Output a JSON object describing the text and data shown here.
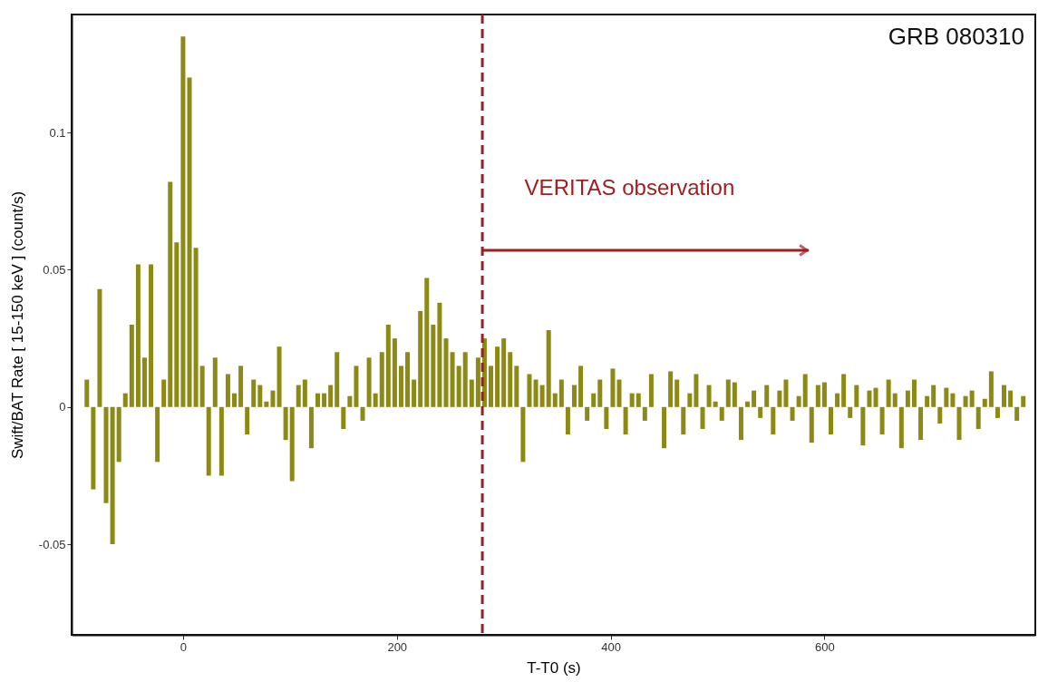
{
  "chart_data": {
    "type": "bar",
    "xlabel": "T-T0  (s)",
    "ylabel": "Swift/BAT Rate  [ 15-150 keV ]     (count/s)",
    "x": [
      -90,
      -84,
      -78,
      -72,
      -66,
      -60,
      -54,
      -48,
      -42,
      -36,
      -30,
      -24,
      -18,
      -12,
      -6,
      0,
      6,
      12,
      18,
      24,
      30,
      36,
      42,
      48,
      54,
      60,
      66,
      72,
      78,
      84,
      90,
      96,
      102,
      108,
      114,
      120,
      126,
      132,
      138,
      144,
      150,
      156,
      162,
      168,
      174,
      180,
      186,
      192,
      198,
      204,
      210,
      216,
      222,
      228,
      234,
      240,
      246,
      252,
      258,
      264,
      270,
      276,
      282,
      288,
      294,
      300,
      306,
      312,
      318,
      324,
      330,
      336,
      342,
      348,
      354,
      360,
      366,
      372,
      378,
      384,
      390,
      396,
      402,
      408,
      414,
      420,
      426,
      432,
      438,
      444,
      450,
      456,
      462,
      468,
      474,
      480,
      486,
      492,
      498,
      504,
      510,
      516,
      522,
      528,
      534,
      540,
      546,
      552,
      558,
      564,
      570,
      576,
      582,
      588,
      594,
      600,
      606,
      612,
      618,
      624,
      630,
      636,
      642,
      648,
      654,
      660,
      666,
      672,
      678,
      684,
      690,
      696,
      702,
      708,
      714,
      720,
      726,
      732,
      738,
      744,
      750,
      756,
      762,
      768,
      774,
      780,
      786
    ],
    "values": [
      0.01,
      -0.03,
      0.043,
      -0.035,
      -0.05,
      -0.02,
      0.005,
      0.03,
      0.052,
      0.018,
      0.052,
      -0.02,
      0.01,
      0.082,
      0.06,
      0.135,
      0.12,
      0.058,
      0.015,
      -0.025,
      0.018,
      -0.025,
      0.012,
      0.005,
      0.015,
      -0.01,
      0.01,
      0.008,
      0.002,
      0.006,
      0.022,
      -0.012,
      -0.027,
      0.008,
      0.01,
      -0.015,
      0.005,
      0.005,
      0.008,
      0.02,
      -0.008,
      0.004,
      0.015,
      -0.005,
      0.018,
      0.005,
      0.02,
      0.03,
      0.025,
      0.015,
      0.02,
      0.01,
      0.035,
      0.047,
      0.03,
      0.038,
      0.025,
      0.02,
      0.015,
      0.02,
      0.01,
      0.018,
      0.025,
      0.015,
      0.022,
      0.025,
      0.02,
      0.015,
      -0.02,
      0.012,
      0.01,
      0.008,
      0.028,
      0.005,
      0.01,
      -0.01,
      0.008,
      0.015,
      -0.005,
      0.005,
      0.01,
      -0.008,
      0.014,
      0.01,
      -0.01,
      0.005,
      0.005,
      -0.005,
      0.012,
      0.0,
      -0.015,
      0.013,
      0.01,
      -0.01,
      0.005,
      0.012,
      -0.008,
      0.008,
      0.002,
      -0.005,
      0.01,
      0.009,
      -0.012,
      0.002,
      0.006,
      -0.004,
      0.008,
      -0.01,
      0.006,
      0.01,
      -0.005,
      0.004,
      0.012,
      -0.013,
      0.008,
      0.009,
      -0.01,
      0.005,
      0.012,
      -0.004,
      0.008,
      -0.014,
      0.006,
      0.007,
      -0.01,
      0.01,
      0.005,
      -0.015,
      0.006,
      0.01,
      -0.012,
      0.004,
      0.008,
      -0.006,
      0.007,
      0.005,
      -0.012,
      0.004,
      0.006,
      -0.008,
      0.003,
      0.013,
      -0.004,
      0.008,
      0.006,
      -0.005,
      0.004
    ],
    "color": "#8c8a14",
    "xlim": [
      -100,
      793
    ],
    "ylim": [
      -0.083,
      0.143
    ],
    "xticks": [
      0,
      200,
      400,
      600
    ],
    "yticks": [
      -0.05,
      0,
      0.05,
      0.1
    ],
    "grid": false,
    "ref_lines": [
      {
        "axis": "x",
        "value": 280,
        "color": "#a01e1e",
        "line_style": "dashed"
      }
    ],
    "annotations": [
      "GRB 080310",
      "VERITAS observation"
    ]
  }
}
